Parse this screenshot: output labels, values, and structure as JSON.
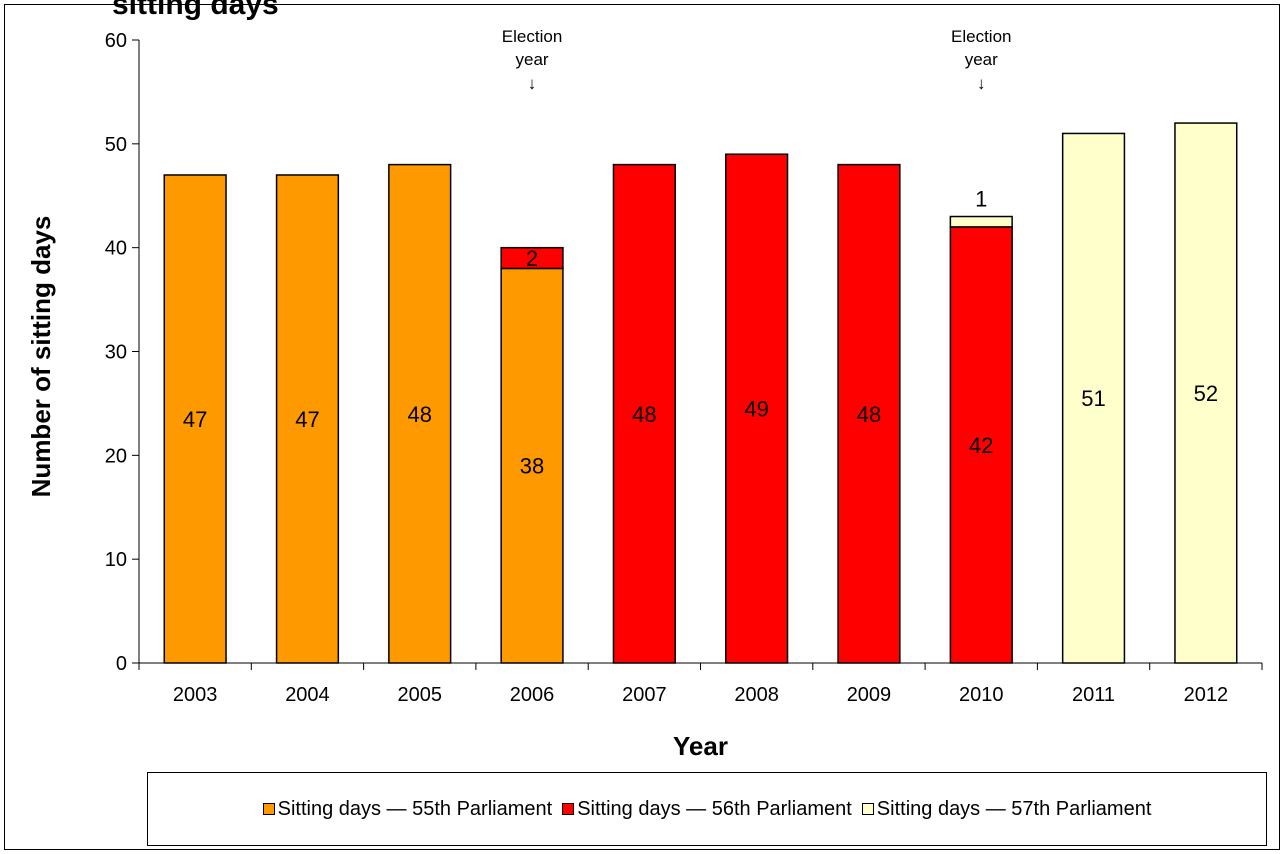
{
  "title_fragment": "sitting days",
  "chart_data": {
    "type": "bar",
    "stacked": true,
    "categories": [
      "2003",
      "2004",
      "2005",
      "2006",
      "2007",
      "2008",
      "2009",
      "2010",
      "2011",
      "2012"
    ],
    "series": [
      {
        "name": "Sitting days — 55th Parliament",
        "color": "#FF9900",
        "values": [
          47,
          47,
          48,
          38,
          0,
          0,
          0,
          0,
          0,
          0
        ]
      },
      {
        "name": "Sitting days — 56th Parliament",
        "color": "#FF0000",
        "values": [
          0,
          0,
          0,
          2,
          48,
          49,
          48,
          42,
          0,
          0
        ]
      },
      {
        "name": "Sitting days — 57th Parliament",
        "color": "#FFFFCC",
        "values": [
          0,
          0,
          0,
          0,
          0,
          0,
          0,
          1,
          51,
          52
        ]
      }
    ],
    "xlabel": "Year",
    "ylabel": "Number of sitting days",
    "ylim": [
      0,
      60
    ],
    "yticks": [
      "0",
      "10",
      "20",
      "30",
      "40",
      "50",
      "60"
    ],
    "grid": false,
    "legend_position": "bottom",
    "annotations": [
      {
        "category": "2006",
        "line1": "Election",
        "line2": "year",
        "arrow": "↓"
      },
      {
        "category": "2010",
        "line1": "Election",
        "line2": "year",
        "arrow": "↓"
      }
    ]
  }
}
